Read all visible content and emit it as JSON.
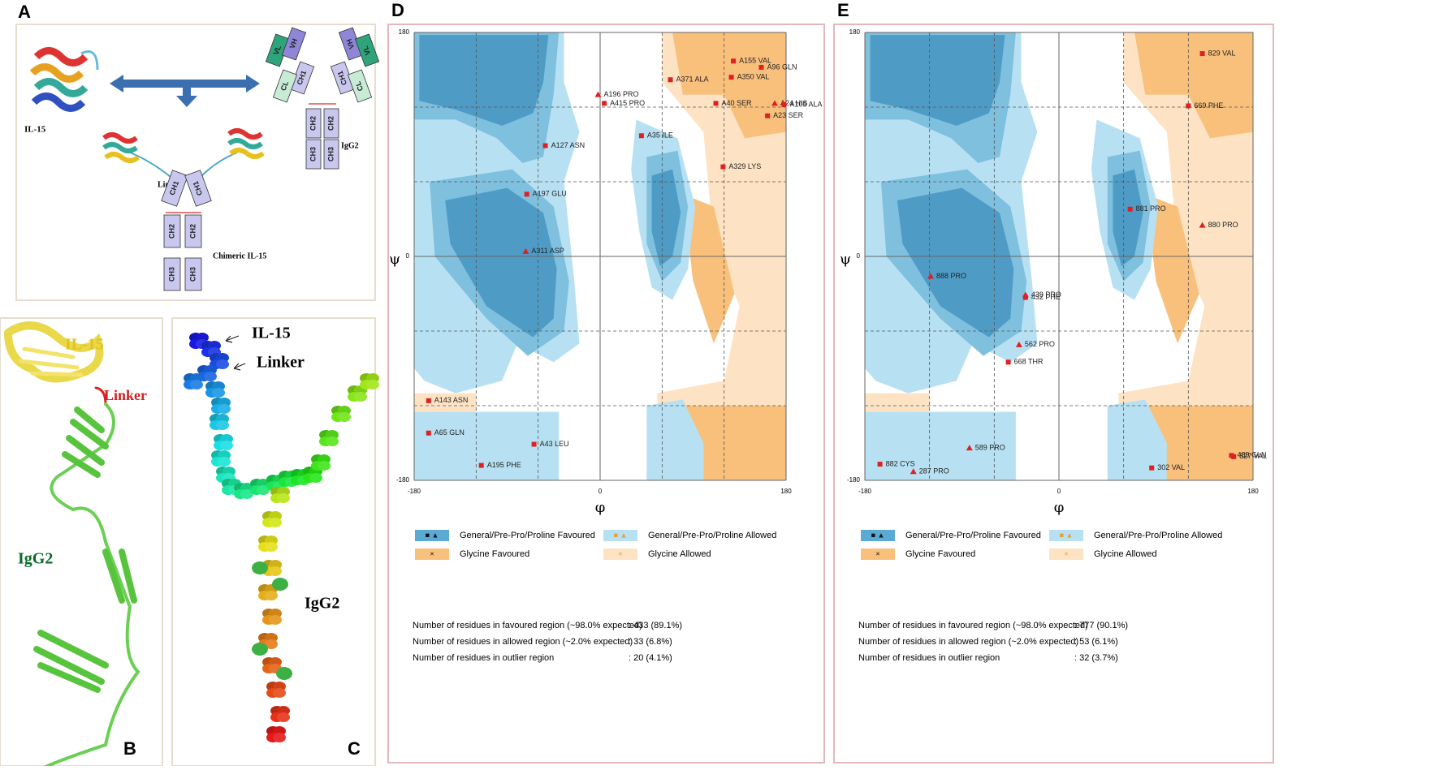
{
  "panel_a": {
    "letter": "A",
    "il15_label": "IL-15",
    "igg2_label": "IgG2",
    "linker_label": "Linker",
    "chimeric_label": "Chimeric IL-15",
    "igg2_domains": [
      "VL",
      "VH",
      "CH1",
      "CL",
      "VH",
      "VL",
      "CH1",
      "CL",
      "CH2",
      "CH2",
      "CH3",
      "CH3"
    ],
    "chimeric_domains": [
      "CH1",
      "CH1",
      "CH2",
      "CH2",
      "CH3",
      "CH3"
    ]
  },
  "panel_b": {
    "letter": "B",
    "il15_label": "IL-15",
    "linker_label": "Linker",
    "igg2_label": "IgG2"
  },
  "panel_c": {
    "letter": "C",
    "il15_label": "IL-15",
    "linker_label": "Linker",
    "igg2_label": "IgG2"
  },
  "chart_data": [
    {
      "type": "scatter",
      "panel_label": "D",
      "xlabel": "φ",
      "ylabel": "ψ",
      "xlim": [
        -180,
        180
      ],
      "ylim": [
        -180,
        180
      ],
      "xticks": [
        -180,
        0,
        180
      ],
      "yticks": [
        -180,
        0,
        180
      ],
      "gridlines": [
        -120,
        -60,
        60,
        120
      ],
      "x": [
        -2,
        4,
        -53,
        -71,
        -72,
        68,
        129,
        156,
        127,
        112,
        169,
        178,
        162,
        40,
        119,
        -166,
        -166,
        -115,
        -64
      ],
      "values": [
        130,
        123,
        89,
        50,
        4,
        142,
        157,
        152,
        144,
        123,
        123,
        122,
        113,
        97,
        72,
        -116,
        -142,
        -168,
        -151
      ],
      "point_labels": [
        "A196  PRO",
        "A415  PRO",
        "A127  ASN",
        "A197  GLU",
        "A311  ASP",
        "A371  ALA",
        "A155  VAL",
        "A96  GLN",
        "A350  VAL",
        "A40  SER",
        "A24  HIS",
        "A105  ALA",
        "A23  SER",
        "A35  ILE",
        "A329  LYS",
        "A143  ASN",
        "A65  GLN",
        "A195  PHE",
        "A43  LEU"
      ],
      "markers": [
        "triangle",
        "square",
        "square",
        "square",
        "triangle",
        "square",
        "square",
        "square",
        "square",
        "square",
        "triangle",
        "square",
        "square",
        "square",
        "square",
        "square",
        "square",
        "square",
        "square"
      ],
      "color": "#e02020",
      "legend": [
        "General/Pre-Pro/Proline Favoured",
        "General/Pre-Pro/Proline Allowed",
        "Glycine Favoured",
        "Glycine Allowed"
      ],
      "stats": [
        {
          "label": "Number of residues in favoured region (~98.0% expected)",
          "value": ":  433  (89.1%)"
        },
        {
          "label": "Number of residues in allowed region  (~2.0% expected)",
          "value": ":   33  (6.8%)"
        },
        {
          "label": "Number of residues in outlier region",
          "value": ":   20  (4.1%)"
        }
      ]
    },
    {
      "type": "scatter",
      "panel_label": "E",
      "xlabel": "φ",
      "ylabel": "ψ",
      "xlim": [
        -180,
        180
      ],
      "ylim": [
        -180,
        180
      ],
      "xticks": [
        -180,
        0,
        180
      ],
      "yticks": [
        -180,
        0,
        180
      ],
      "gridlines": [
        -120,
        -60,
        60,
        120
      ],
      "x": [
        133,
        120,
        66,
        133,
        -119,
        -31,
        -31,
        -37,
        -47,
        -83,
        -166,
        -135,
        86,
        160,
        162
      ],
      "values": [
        163,
        121,
        38,
        25,
        -16,
        -31,
        -33,
        -71,
        -85,
        -154,
        -167,
        -173,
        -170,
        -160,
        -161
      ],
      "point_labels": [
        "829  VAL",
        "669  PHE",
        "881  PRO",
        "880  PRO",
        "888  PRO",
        "439  PRO",
        "432  PHE",
        "562  PRO",
        "668  THR",
        "589  PRO",
        "882  CYS",
        "287  PRO",
        "302  VAL",
        "489  GLN",
        "827  VAL"
      ],
      "markers": [
        "square",
        "square",
        "square",
        "triangle",
        "triangle",
        "triangle",
        "square",
        "triangle",
        "square",
        "triangle",
        "square",
        "triangle",
        "square",
        "square",
        "square"
      ],
      "color": "#e02020",
      "legend": [
        "General/Pre-Pro/Proline Favoured",
        "General/Pre-Pro/Proline Allowed",
        "Glycine Favoured",
        "Glycine Allowed"
      ],
      "stats": [
        {
          "label": "Number of residues in favoured region (~98.0% expected)",
          "value": ":  777  (90.1%)"
        },
        {
          "label": "Number of residues in allowed region  (~2.0% expected)",
          "value": ":   53  (6.1%)"
        },
        {
          "label": "Number of residues in outlier region",
          "value": ":   32  (3.7%)"
        }
      ]
    }
  ]
}
